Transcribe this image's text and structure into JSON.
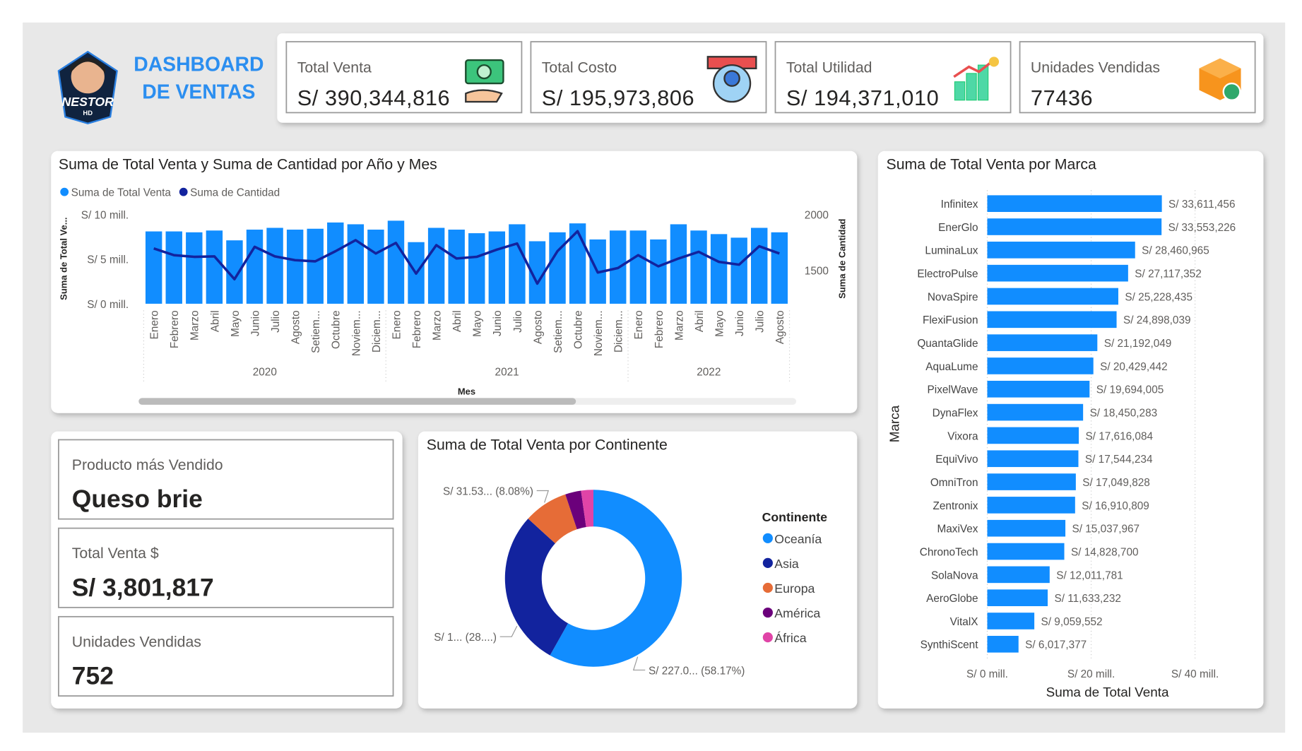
{
  "header": {
    "title": [
      "DASHBOARD",
      "DE VENTAS"
    ],
    "logo": [
      "NESTOR",
      "HD"
    ]
  },
  "kpis": [
    {
      "label": "Total Venta",
      "value": "S/ 390,344,816"
    },
    {
      "label": "Total Costo",
      "value": "S/ 195,973,806"
    },
    {
      "label": "Total Utilidad",
      "value": "S/ 194,371,010"
    },
    {
      "label": "Unidades Vendidas",
      "value": "77436"
    }
  ],
  "cards": [
    {
      "label": "Producto más Vendido",
      "value": "Queso brie"
    },
    {
      "label": "Total Venta $",
      "value": "S/ 3,801,817"
    },
    {
      "label": "Unidades Vendidas",
      "value": "752"
    }
  ],
  "chart_data": [
    {
      "type": "combo",
      "title": "Suma de Total Venta y Suma de Cantidad por Año y Mes",
      "x_label": "Mes",
      "y_label": "Suma de Total Ve...",
      "y2_label": "Suma de Cantidad",
      "legend": "top-left",
      "groups": [
        {
          "label": "2020",
          "categories": [
            "Enero",
            "Febrero",
            "Marzo",
            "Abril",
            "Mayo",
            "Junio",
            "Julio",
            "Agosto",
            "Setiem...",
            "Octubre",
            "Noviem...",
            "Diciem..."
          ]
        },
        {
          "label": "2021",
          "categories": [
            "Enero",
            "Febrero",
            "Marzo",
            "Abril",
            "Mayo",
            "Junio",
            "Julio",
            "Agosto",
            "Setiem...",
            "Octubre",
            "Noviem...",
            "Diciem..."
          ]
        },
        {
          "label": "2022",
          "categories": [
            "Enero",
            "Febrero",
            "Marzo",
            "Abril",
            "Mayo",
            "Junio",
            "Julio",
            "Agosto"
          ]
        }
      ],
      "ylim": [
        0,
        10000000
      ],
      "yticks": [
        {
          "value": 0,
          "label": "S/ 0 mill."
        },
        {
          "value": 5000000,
          "label": "S/ 5 mill."
        },
        {
          "value": 10000000,
          "label": "S/ 10 mill."
        }
      ],
      "y2lim": [
        1200,
        2000
      ],
      "y2ticks": [
        1500,
        2000
      ],
      "series": [
        {
          "name": "Suma de Total Venta",
          "color": "#118dff",
          "type": "bar",
          "values": [
            8100000,
            8100000,
            8000000,
            8200000,
            7100000,
            8300000,
            8500000,
            8300000,
            8400000,
            9100000,
            8900000,
            8300000,
            9300000,
            6900000,
            8500000,
            8300000,
            7900000,
            8100000,
            8900000,
            7000000,
            8000000,
            9000000,
            7200000,
            8200000,
            8200000,
            7200000,
            8900000,
            8200000,
            7800000,
            7400000,
            8500000,
            8000000
          ]
        },
        {
          "name": "Suma de Cantidad",
          "color": "#12239e",
          "type": "line",
          "axis": "y2",
          "values": [
            1695,
            1635,
            1620,
            1625,
            1420,
            1710,
            1625,
            1590,
            1580,
            1670,
            1770,
            1650,
            1745,
            1470,
            1725,
            1605,
            1620,
            1685,
            1740,
            1380,
            1670,
            1850,
            1480,
            1520,
            1635,
            1535,
            1605,
            1665,
            1575,
            1550,
            1715,
            1650
          ]
        }
      ]
    },
    {
      "type": "donut",
      "title": "Suma de Total Venta por Continente",
      "legend_title": "Continente",
      "categories": [
        "Oceanía",
        "Asia",
        "Europa",
        "América",
        "África"
      ],
      "values": [
        227.06,
        111.64,
        31.54,
        11.32,
        8.78
      ],
      "value_labels": [
        "S/ 227.0... (58.17%)",
        "S/ 1... (28....)",
        "S/ 31.53... (8.08%)",
        null,
        null
      ],
      "colors": [
        "#118dff",
        "#12239e",
        "#e66c37",
        "#6b007b",
        "#e044a7"
      ]
    },
    {
      "type": "barh",
      "title": "Suma de Total Venta por Marca",
      "x_label": "Suma de Total Venta",
      "y_label": "Marca",
      "color": "#118dff",
      "grid": true,
      "categories": [
        "Infinitex",
        "EnerGlo",
        "LuminaLux",
        "ElectroPulse",
        "NovaSpire",
        "FlexiFusion",
        "QuantaGlide",
        "AquaLume",
        "PixelWave",
        "DynaFlex",
        "Vixora",
        "EquiVivo",
        "OmniTron",
        "Zentronix",
        "MaxiVex",
        "ChronoTech",
        "SolaNova",
        "AeroGlobe",
        "VitalX",
        "SynthiScent"
      ],
      "values": [
        33611456,
        33553226,
        28460965,
        27117352,
        25228435,
        24898039,
        21192049,
        20429442,
        19694005,
        18450283,
        17616084,
        17544234,
        17049828,
        16910809,
        15037967,
        14828700,
        12011781,
        11633232,
        9059552,
        6017377
      ],
      "value_labels": [
        "S/ 33,611,456",
        "S/ 33,553,226",
        "S/ 28,460,965",
        "S/ 27,117,352",
        "S/ 25,228,435",
        "S/ 24,898,039",
        "S/ 21,192,049",
        "S/ 20,429,442",
        "S/ 19,694,005",
        "S/ 18,450,283",
        "S/ 17,616,084",
        "S/ 17,544,234",
        "S/ 17,049,828",
        "S/ 16,910,809",
        "S/ 15,037,967",
        "S/ 14,828,700",
        "S/ 12,011,781",
        "S/ 11,633,232",
        "S/ 9,059,552",
        "S/ 6,017,377"
      ],
      "xlim": [
        0,
        40000000
      ],
      "xticks": [
        {
          "value": 0,
          "label": "S/ 0 mill."
        },
        {
          "value": 20000000,
          "label": "S/ 20 mill."
        },
        {
          "value": 40000000,
          "label": "S/ 40 mill."
        }
      ]
    }
  ]
}
